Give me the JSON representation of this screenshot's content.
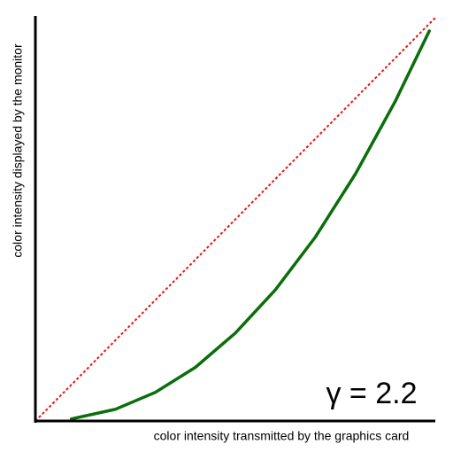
{
  "chart_data": {
    "type": "line",
    "xlabel": "color intensity transmitted by the graphics card",
    "ylabel": "color intensity displayed by the monitor",
    "annotation": "γ = 2.2",
    "x": [
      0,
      0.09,
      0.2,
      0.3,
      0.4,
      0.5,
      0.6,
      0.7,
      0.8,
      0.9,
      0.985,
      1
    ],
    "xlim": [
      0,
      1
    ],
    "ylim": [
      0,
      1
    ],
    "series": [
      {
        "color": "#ee1111",
        "dashed": true,
        "values": [
          0,
          0.09,
          0.2,
          0.3,
          0.4,
          0.5,
          0.6,
          0.7,
          0.8,
          0.9,
          0.985,
          1
        ]
      },
      {
        "color": "#0b6e0b",
        "dashed": false,
        "values": [
          null,
          0.005,
          0.029,
          0.071,
          0.133,
          0.218,
          0.325,
          0.456,
          0.612,
          0.793,
          0.967,
          null
        ]
      }
    ]
  }
}
